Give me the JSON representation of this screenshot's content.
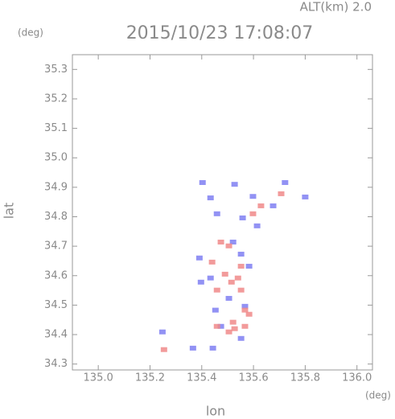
{
  "chart_data": {
    "type": "scatter",
    "title": "2015/10/23 17:08:07",
    "subtitle": "ALT(km) 2.0",
    "x_label": "lon",
    "y_label": "lat",
    "x_unit": "(deg)",
    "y_unit": "(deg)",
    "xlim": [
      134.9,
      136.06
    ],
    "ylim": [
      34.28,
      35.35
    ],
    "xticks": [
      {
        "value": 135,
        "label": "135.0"
      },
      135.2,
      135.4,
      135.6,
      135.8,
      {
        "value": 136,
        "label": "136.0"
      }
    ],
    "yticks": [
      34.3,
      34.4,
      34.5,
      34.6,
      34.7,
      34.8,
      34.9,
      {
        "value": 35,
        "label": "35.0"
      },
      35.1,
      35.2,
      35.3
    ],
    "series": [
      {
        "color": "#7f7ff2",
        "x": [
          135.403,
          135.527,
          135.434,
          135.598,
          135.676,
          135.459,
          135.558,
          135.614,
          135.391,
          135.552,
          135.434,
          135.397,
          135.505,
          135.567,
          135.474,
          135.552,
          135.366,
          135.443,
          135.248,
          135.8,
          135.722,
          135.521,
          135.583,
          135.453
        ],
        "values": [
          34.916,
          34.91,
          34.864,
          34.869,
          34.837,
          34.81,
          34.796,
          34.769,
          34.66,
          34.673,
          34.592,
          34.578,
          34.523,
          34.496,
          34.428,
          34.387,
          34.354,
          34.354,
          34.409,
          34.867,
          34.916,
          34.714,
          34.632,
          34.483
        ]
      },
      {
        "color": "#f08a8a",
        "x": [
          135.505,
          135.474,
          135.552,
          135.49,
          135.54,
          135.459,
          135.515,
          135.567,
          135.583,
          135.527,
          135.505,
          135.459,
          135.254,
          135.707,
          135.629,
          135.44,
          135.552,
          135.598,
          135.521,
          135.567
        ],
        "values": [
          34.701,
          34.714,
          34.632,
          34.605,
          34.592,
          34.551,
          34.578,
          34.483,
          34.469,
          34.42,
          34.409,
          34.428,
          34.349,
          34.878,
          34.837,
          34.646,
          34.551,
          34.81,
          34.442,
          34.428
        ]
      }
    ]
  }
}
